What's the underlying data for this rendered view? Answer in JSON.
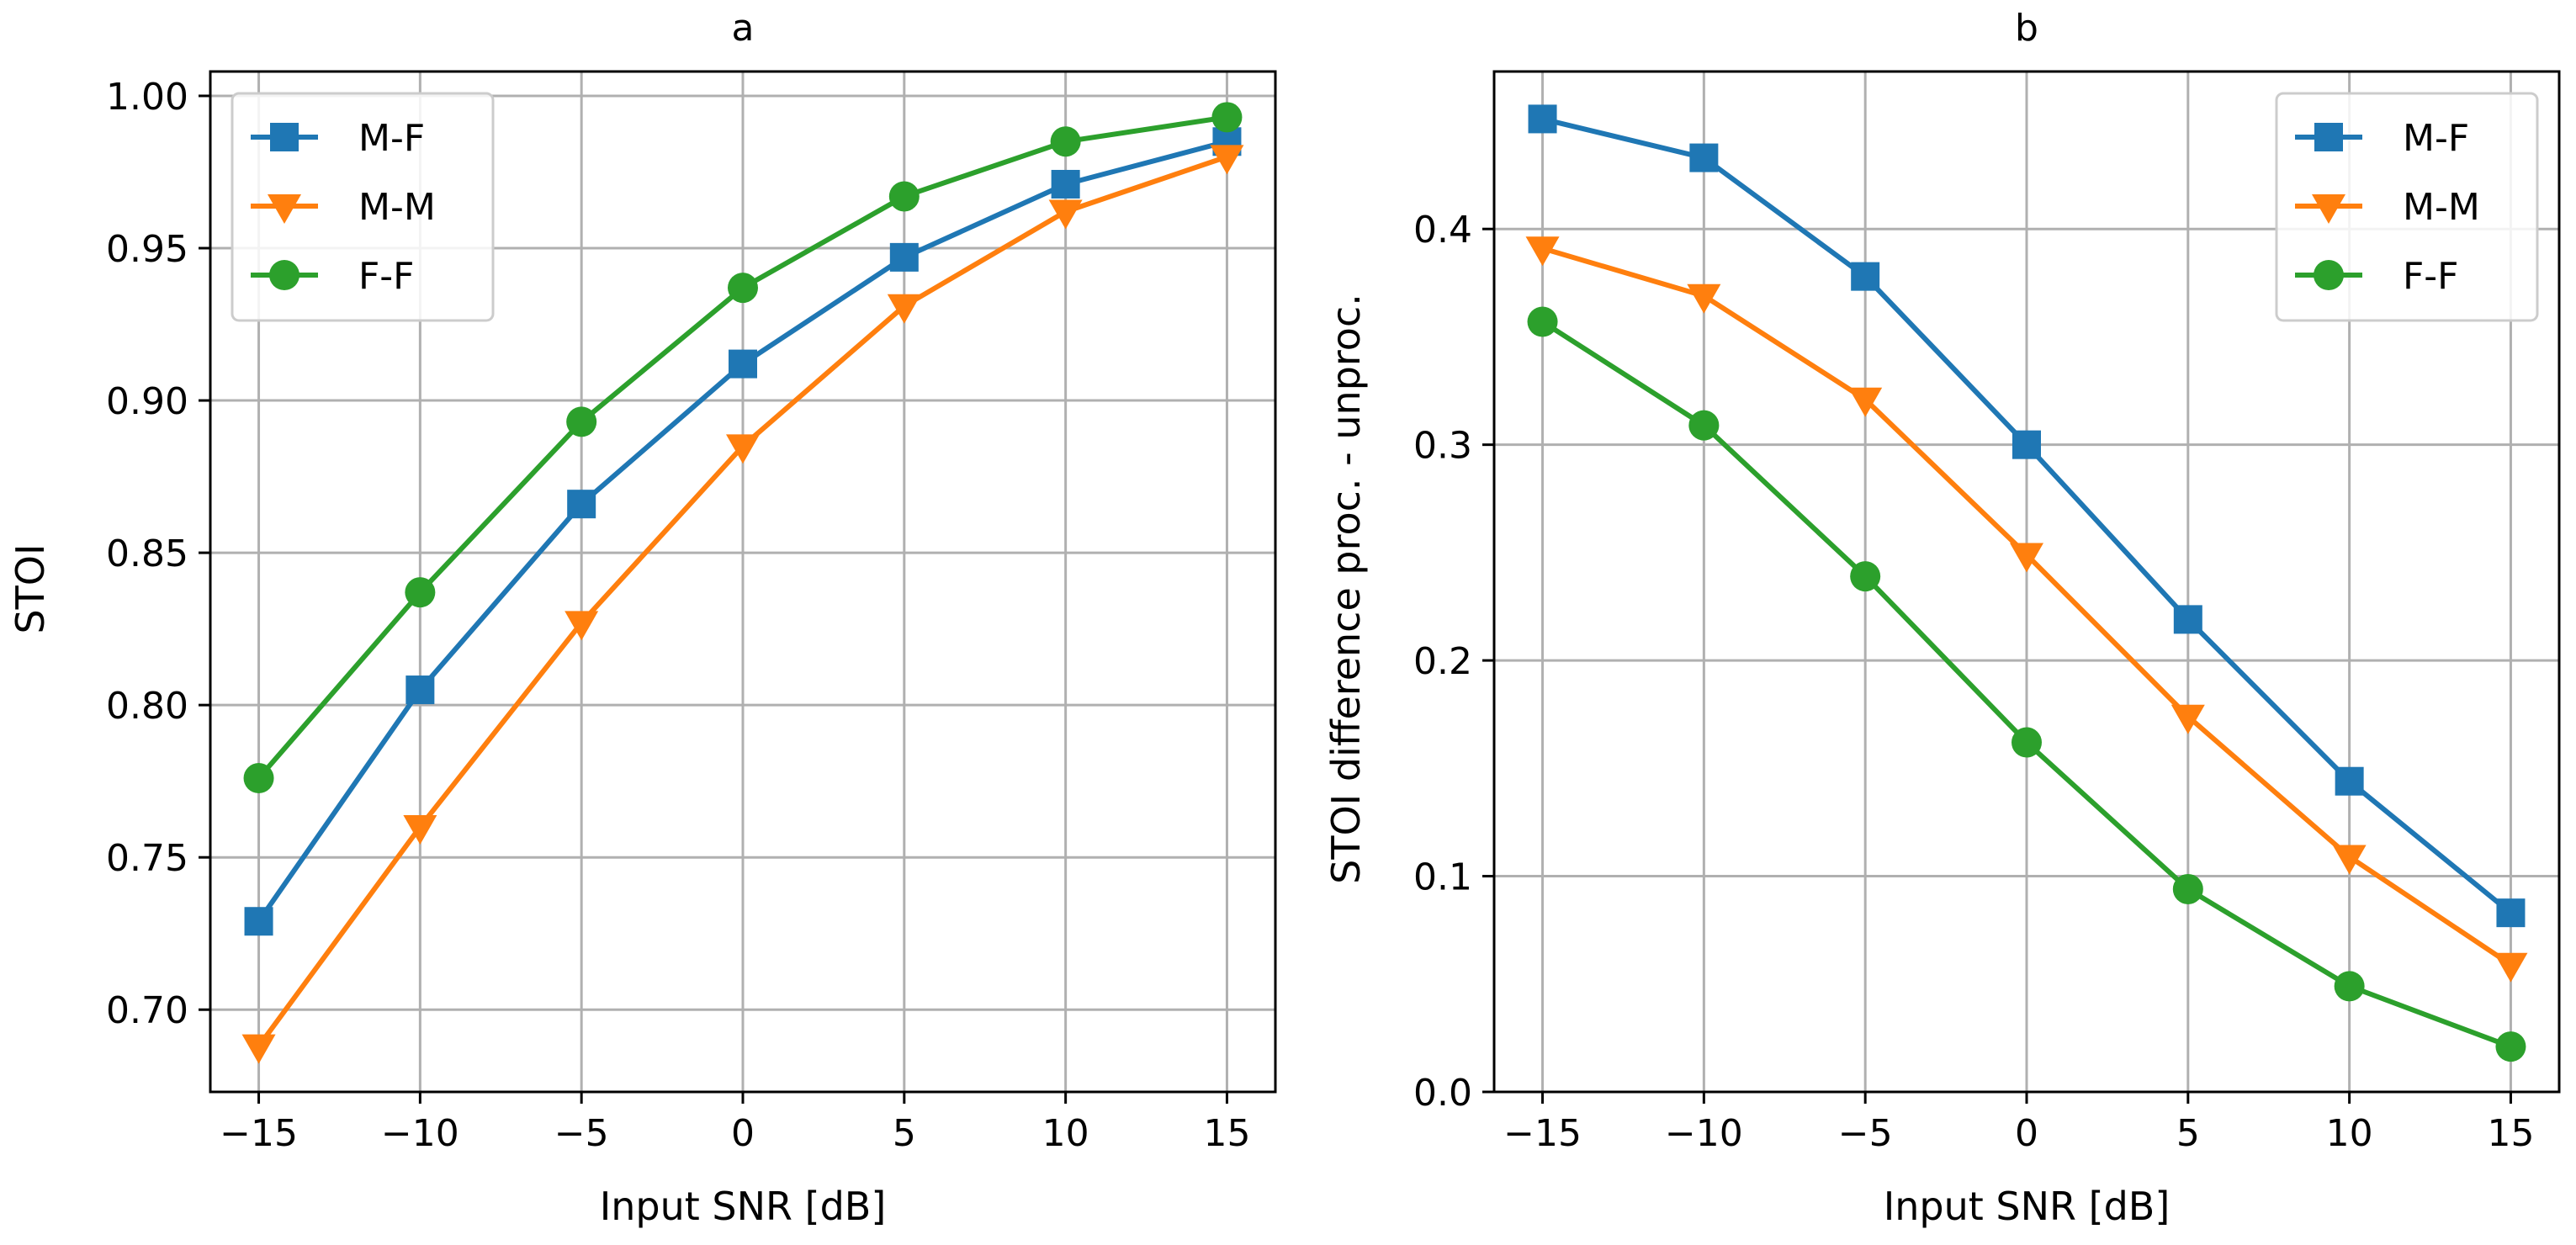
{
  "chart_data": [
    {
      "type": "line",
      "title": "a",
      "xlabel": "Input SNR [dB]",
      "ylabel": "STOI",
      "x": [
        -15,
        -10,
        -5,
        0,
        5,
        10,
        15
      ],
      "x_ticks": [
        -15,
        -10,
        -5,
        0,
        5,
        10,
        15
      ],
      "x_tick_labels": [
        "−15",
        "−10",
        "−5",
        "0",
        "5",
        "10",
        "15"
      ],
      "xlim": [
        -16.5,
        16.5
      ],
      "ylim": [
        0.673,
        1.008
      ],
      "y_ticks": [
        0.7,
        0.75,
        0.8,
        0.85,
        0.9,
        0.95,
        1.0
      ],
      "y_tick_labels": [
        "0.70",
        "0.75",
        "0.80",
        "0.85",
        "0.90",
        "0.95",
        "1.00"
      ],
      "grid": true,
      "legend_position": "top-left",
      "series": [
        {
          "name": "M-F",
          "color": "#1f77b4",
          "marker": "square",
          "values": [
            0.729,
            0.805,
            0.866,
            0.912,
            0.947,
            0.971,
            0.985
          ]
        },
        {
          "name": "M-M",
          "color": "#ff7f0e",
          "marker": "triangle-down",
          "values": [
            0.688,
            0.76,
            0.827,
            0.885,
            0.931,
            0.962,
            0.98
          ]
        },
        {
          "name": "F-F",
          "color": "#2ca02c",
          "marker": "circle",
          "values": [
            0.776,
            0.837,
            0.893,
            0.937,
            0.967,
            0.985,
            0.993
          ]
        }
      ]
    },
    {
      "type": "line",
      "title": "b",
      "xlabel": "Input SNR [dB]",
      "ylabel": "STOI difference proc. - unproc.",
      "x": [
        -15,
        -10,
        -5,
        0,
        5,
        10,
        15
      ],
      "x_ticks": [
        -15,
        -10,
        -5,
        0,
        5,
        10,
        15
      ],
      "x_tick_labels": [
        "−15",
        "−10",
        "−5",
        "0",
        "5",
        "10",
        "15"
      ],
      "xlim": [
        -16.5,
        16.5
      ],
      "ylim": [
        0.0,
        0.473
      ],
      "y_ticks": [
        0.0,
        0.1,
        0.2,
        0.3,
        0.4
      ],
      "y_tick_labels": [
        "0.0",
        "0.1",
        "0.2",
        "0.3",
        "0.4"
      ],
      "grid": true,
      "legend_position": "top-right",
      "series": [
        {
          "name": "M-F",
          "color": "#1f77b4",
          "marker": "square",
          "values": [
            0.451,
            0.433,
            0.378,
            0.3,
            0.219,
            0.144,
            0.083
          ]
        },
        {
          "name": "M-M",
          "color": "#ff7f0e",
          "marker": "triangle-down",
          "values": [
            0.391,
            0.369,
            0.321,
            0.249,
            0.174,
            0.109,
            0.059
          ]
        },
        {
          "name": "F-F",
          "color": "#2ca02c",
          "marker": "circle",
          "values": [
            0.357,
            0.309,
            0.239,
            0.162,
            0.094,
            0.049,
            0.021
          ]
        }
      ]
    }
  ]
}
